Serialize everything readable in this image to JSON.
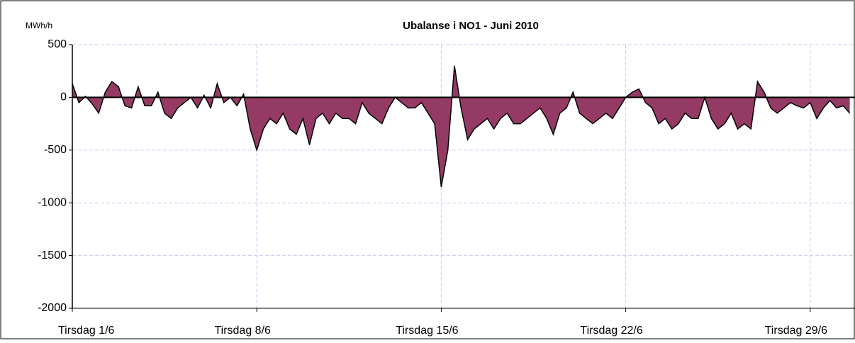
{
  "chart_data": {
    "type": "area",
    "title": "Ubalanse i NO1 -  Juni 2010",
    "y_unit_label": "MWh/h",
    "x": [
      0,
      0.25,
      0.5,
      0.75,
      1,
      1.25,
      1.5,
      1.75,
      2,
      2.25,
      2.5,
      2.75,
      3,
      3.25,
      3.5,
      3.75,
      4,
      4.25,
      4.5,
      4.75,
      5,
      5.25,
      5.5,
      5.75,
      6,
      6.25,
      6.5,
      6.75,
      7,
      7.25,
      7.5,
      7.75,
      8,
      8.25,
      8.5,
      8.75,
      9,
      9.25,
      9.5,
      9.75,
      10,
      10.25,
      10.5,
      10.75,
      11,
      11.25,
      11.5,
      11.75,
      12,
      12.25,
      12.5,
      12.75,
      13,
      13.25,
      13.5,
      13.75,
      14,
      14.25,
      14.5,
      14.75,
      15,
      15.25,
      15.5,
      15.75,
      16,
      16.25,
      16.5,
      16.75,
      17,
      17.25,
      17.5,
      17.75,
      18,
      18.25,
      18.5,
      18.75,
      19,
      19.25,
      19.5,
      19.75,
      20,
      20.25,
      20.5,
      20.75,
      21,
      21.25,
      21.5,
      21.75,
      22,
      22.25,
      22.5,
      22.75,
      23,
      23.25,
      23.5,
      23.75,
      24,
      24.25,
      24.5,
      24.75,
      25,
      25.25,
      25.5,
      25.75,
      26,
      26.25,
      26.5,
      26.75,
      27,
      27.25,
      27.5,
      27.75,
      28,
      28.25,
      28.5,
      28.75,
      29,
      29.25,
      29.5
    ],
    "values": [
      130,
      -50,
      10,
      -60,
      -150,
      50,
      150,
      100,
      -80,
      -100,
      100,
      -80,
      -80,
      50,
      -150,
      -200,
      -100,
      -50,
      0,
      -100,
      20,
      -100,
      130,
      -50,
      0,
      -80,
      30,
      -300,
      -500,
      -300,
      -200,
      -250,
      -150,
      -300,
      -350,
      -200,
      -450,
      -200,
      -150,
      -250,
      -150,
      -200,
      -200,
      -250,
      -50,
      -150,
      -200,
      -250,
      -100,
      0,
      -50,
      -100,
      -100,
      -50,
      -150,
      -250,
      -850,
      -500,
      300,
      -100,
      -400,
      -300,
      -250,
      -200,
      -300,
      -200,
      -150,
      -250,
      -250,
      -200,
      -150,
      -100,
      -200,
      -350,
      -150,
      -100,
      50,
      -150,
      -200,
      -250,
      -200,
      -150,
      -200,
      -100,
      0,
      50,
      80,
      -50,
      -100,
      -250,
      -200,
      -300,
      -250,
      -150,
      -200,
      -200,
      0,
      -200,
      -300,
      -250,
      -150,
      -300,
      -250,
      -300,
      150,
      50,
      -100,
      -150,
      -100,
      -50,
      -80,
      -100,
      -50,
      -200,
      -100,
      -30,
      -100,
      -80,
      -150
    ],
    "color": "#953a64",
    "line_color": "#000000",
    "xlim": [
      0,
      29.7
    ],
    "xticks": [
      {
        "value": 0,
        "label": "Tirsdag 1/6"
      },
      {
        "value": 7,
        "label": "Tirsdag 8/6"
      },
      {
        "value": 14,
        "label": "Tirsdag  15/6"
      },
      {
        "value": 21,
        "label": "Tirsdag  22/6"
      },
      {
        "value": 28,
        "label": "Tirsdag 29/6"
      }
    ],
    "ylim": [
      -2000,
      500
    ],
    "yticks": [
      500,
      0,
      -500,
      -1000,
      -1500,
      -2000
    ],
    "grid": true
  }
}
